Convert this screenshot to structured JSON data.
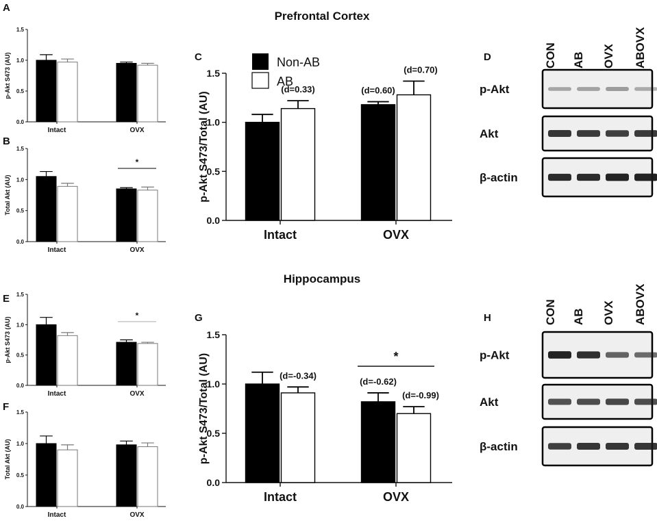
{
  "sections": {
    "top": "Prefrontal Cortex",
    "bottom": "Hippocampus"
  },
  "legend": {
    "non_ab": "Non-AB",
    "ab": "AB"
  },
  "colors": {
    "non_ab_fill": "#000000",
    "ab_fill": "#ffffff",
    "error_bar_dark": "#000000",
    "error_bar_light": "#777777",
    "sig_line_light": "#aaaaaa",
    "blot_background": "#efefef",
    "band_color": "#1a1a1a"
  },
  "chart_data": [
    {
      "panel": "A",
      "type": "bar",
      "title": "",
      "xlabel": "",
      "ylabel": "p-Akt S473 (AU)",
      "categories": [
        "Intact",
        "OVX"
      ],
      "ylim": [
        0,
        1.5
      ],
      "yticks": [
        "0.0",
        "0.5",
        "1.0",
        "1.5"
      ],
      "series": [
        {
          "name": "Non-AB",
          "values": [
            1.0,
            0.95
          ],
          "errors": [
            0.09,
            0.02
          ]
        },
        {
          "name": "AB",
          "values": [
            0.97,
            0.92
          ],
          "errors": [
            0.05,
            0.03
          ]
        }
      ],
      "annotations": [],
      "significance": null
    },
    {
      "panel": "B",
      "type": "bar",
      "title": "",
      "xlabel": "",
      "ylabel": "Total Akt (AU)",
      "categories": [
        "Intact",
        "OVX"
      ],
      "ylim": [
        0,
        1.5
      ],
      "yticks": [
        "0.0",
        "0.5",
        "1.0",
        "1.5"
      ],
      "series": [
        {
          "name": "Non-AB",
          "values": [
            1.05,
            0.85
          ],
          "errors": [
            0.08,
            0.02
          ]
        },
        {
          "name": "AB",
          "values": [
            0.89,
            0.83
          ],
          "errors": [
            0.05,
            0.05
          ]
        }
      ],
      "annotations": [],
      "significance": {
        "label": "*",
        "category": "OVX",
        "y": 1.18,
        "style": "dark"
      }
    },
    {
      "panel": "C",
      "type": "bar",
      "title": "",
      "xlabel": "",
      "ylabel": "p-Akt S473/Total (AU)",
      "categories": [
        "Intact",
        "OVX"
      ],
      "ylim": [
        0,
        1.5
      ],
      "yticks": [
        "0.0",
        "0.5",
        "1.0",
        "1.5"
      ],
      "series": [
        {
          "name": "Non-AB",
          "values": [
            1.0,
            1.18
          ],
          "errors": [
            0.08,
            0.03
          ]
        },
        {
          "name": "AB",
          "values": [
            1.14,
            1.28
          ],
          "errors": [
            0.08,
            0.14
          ]
        }
      ],
      "annotations": [
        {
          "text": "(d=0.33)",
          "category": 0,
          "series": 1
        },
        {
          "text": "(d=0.60)",
          "category": 1,
          "series": 0
        },
        {
          "text": "(d=0.70)",
          "category": 1,
          "series": 1
        }
      ],
      "significance": null
    },
    {
      "panel": "E",
      "type": "bar",
      "title": "",
      "xlabel": "",
      "ylabel": "p-Akt S473 (AU)",
      "categories": [
        "Intact",
        "OVX"
      ],
      "ylim": [
        0,
        1.5
      ],
      "yticks": [
        "0.0",
        "0.5",
        "1.0",
        "1.5"
      ],
      "series": [
        {
          "name": "Non-AB",
          "values": [
            1.0,
            0.71
          ],
          "errors": [
            0.12,
            0.04
          ]
        },
        {
          "name": "AB",
          "values": [
            0.82,
            0.69
          ],
          "errors": [
            0.05,
            0.02
          ]
        }
      ],
      "annotations": [],
      "significance": {
        "label": "*",
        "category": "OVX",
        "y": 1.05,
        "style": "light"
      }
    },
    {
      "panel": "F",
      "type": "bar",
      "title": "",
      "xlabel": "",
      "ylabel": "Total Akt (AU)",
      "categories": [
        "Intact",
        "OVX"
      ],
      "ylim": [
        0,
        1.5
      ],
      "yticks": [
        "0.0",
        "0.5",
        "1.0",
        "1.5"
      ],
      "series": [
        {
          "name": "Non-AB",
          "values": [
            1.0,
            0.98
          ],
          "errors": [
            0.12,
            0.06
          ]
        },
        {
          "name": "AB",
          "values": [
            0.9,
            0.95
          ],
          "errors": [
            0.08,
            0.06
          ]
        }
      ],
      "annotations": [],
      "significance": null
    },
    {
      "panel": "G",
      "type": "bar",
      "title": "",
      "xlabel": "",
      "ylabel": "p-Akt S473/Total (AU)",
      "categories": [
        "Intact",
        "OVX"
      ],
      "ylim": [
        0,
        1.5
      ],
      "yticks": [
        "0.0",
        "0.5",
        "1.0",
        "1.5"
      ],
      "series": [
        {
          "name": "Non-AB",
          "values": [
            1.0,
            0.82
          ],
          "errors": [
            0.12,
            0.09
          ]
        },
        {
          "name": "AB",
          "values": [
            0.91,
            0.7
          ],
          "errors": [
            0.06,
            0.07
          ]
        }
      ],
      "annotations": [
        {
          "text": "(d=-0.34)",
          "category": 0,
          "series": 1
        },
        {
          "text": "(d=-0.62)",
          "category": 1,
          "series": 0
        },
        {
          "text": "(d=-0.99)",
          "category": 1,
          "series": 1
        }
      ],
      "significance": {
        "label": "*",
        "category": "OVX",
        "y": 1.18,
        "style": "dark"
      }
    }
  ],
  "blots": [
    {
      "panel": "D",
      "lanes": [
        "CON",
        "AB",
        "OVX",
        "ABOVX"
      ],
      "rows": [
        {
          "label": "p-Akt",
          "intensity": [
            0.22,
            0.25,
            0.28,
            0.2
          ]
        },
        {
          "label": "Akt",
          "intensity": [
            0.85,
            0.82,
            0.8,
            0.82
          ]
        },
        {
          "label": "β-actin",
          "intensity": [
            0.9,
            0.9,
            0.95,
            0.95
          ]
        }
      ]
    },
    {
      "panel": "H",
      "lanes": [
        "CON",
        "AB",
        "OVX",
        "ABOVX"
      ],
      "rows": [
        {
          "label": "p-Akt",
          "intensity": [
            0.95,
            0.88,
            0.6,
            0.55
          ]
        },
        {
          "label": "Akt",
          "intensity": [
            0.7,
            0.72,
            0.75,
            0.72
          ]
        },
        {
          "label": "β-actin",
          "intensity": [
            0.8,
            0.85,
            0.85,
            0.85
          ]
        }
      ]
    }
  ]
}
